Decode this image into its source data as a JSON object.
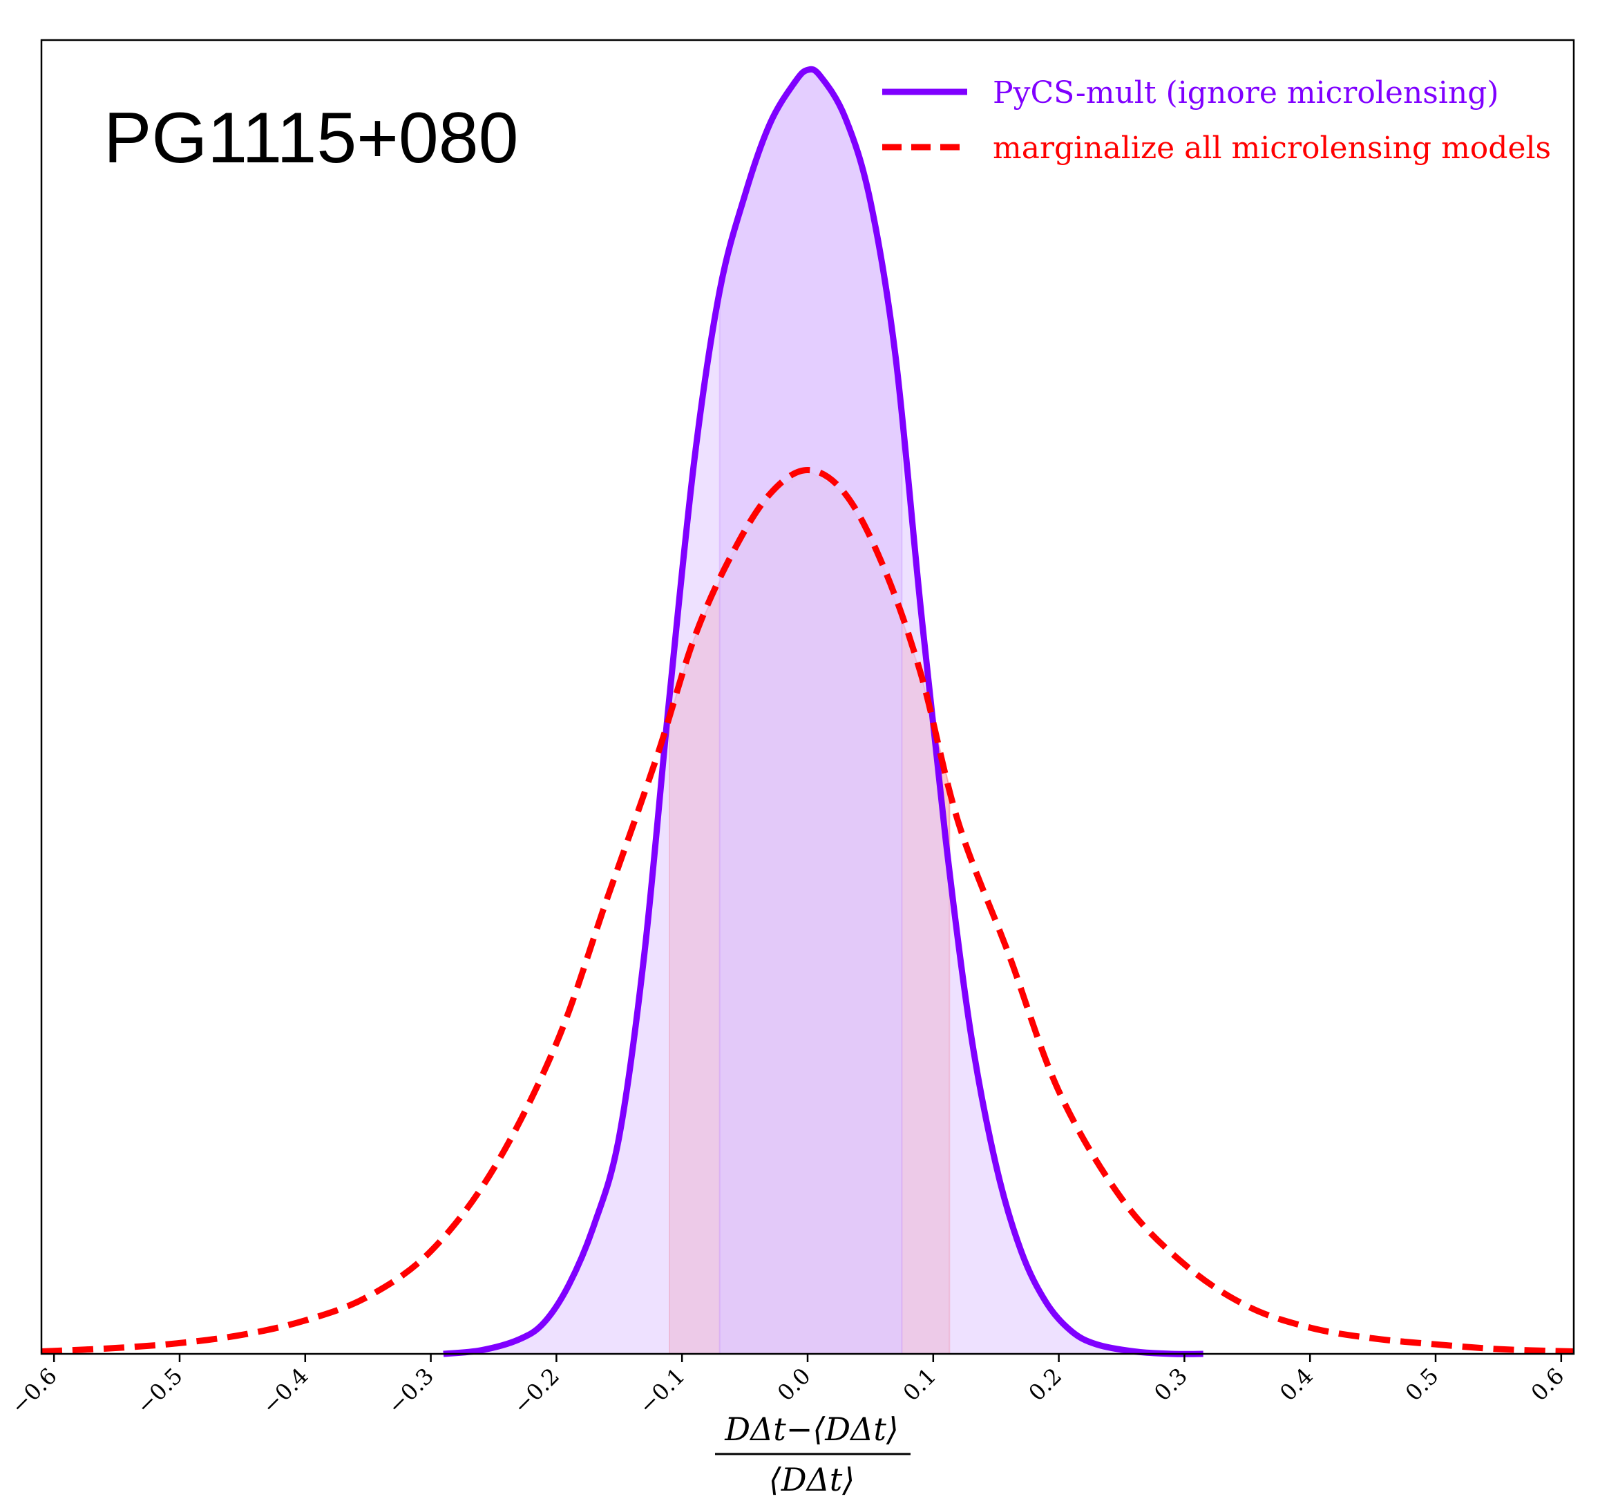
{
  "chart_data": {
    "type": "line",
    "title": "PG1115+080",
    "xlabel_numerator": "DΔt−⟨DΔt⟩",
    "xlabel_denominator": "⟨DΔt⟩",
    "xlim": [
      -0.61,
      0.61
    ],
    "ylim": [
      0,
      1.1
    ],
    "grid": false,
    "legend_position": "top-right",
    "xticks": [
      {
        "value": -0.6,
        "label": "−0.6"
      },
      {
        "value": -0.5,
        "label": "−0.5"
      },
      {
        "value": -0.4,
        "label": "−0.4"
      },
      {
        "value": -0.3,
        "label": "−0.3"
      },
      {
        "value": -0.2,
        "label": "−0.2"
      },
      {
        "value": -0.1,
        "label": "−0.1"
      },
      {
        "value": 0.0,
        "label": "0.0"
      },
      {
        "value": 0.1,
        "label": "0.1"
      },
      {
        "value": 0.2,
        "label": "0.2"
      },
      {
        "value": 0.3,
        "label": "0.3"
      },
      {
        "value": 0.4,
        "label": "0.4"
      },
      {
        "value": 0.5,
        "label": "0.5"
      },
      {
        "value": 0.6,
        "label": "0.6"
      }
    ],
    "series": [
      {
        "name": "PyCS-mult (ignore microlensing)",
        "color": "#7f00ff",
        "fill_color": "#e0c8ff",
        "line_style": "solid",
        "shaded_interval": [
          -0.07,
          0.075
        ],
        "x": [
          -0.29,
          -0.26,
          -0.23,
          -0.21,
          -0.19,
          -0.17,
          -0.15,
          -0.13,
          -0.11,
          -0.09,
          -0.07,
          -0.05,
          -0.03,
          -0.01,
          0.0,
          0.01,
          0.03,
          0.05,
          0.07,
          0.09,
          0.11,
          0.13,
          0.15,
          0.17,
          0.19,
          0.21,
          0.23,
          0.26,
          0.29,
          0.315
        ],
        "y": [
          0.0,
          0.003,
          0.012,
          0.026,
          0.058,
          0.108,
          0.182,
          0.335,
          0.55,
          0.75,
          0.89,
          0.97,
          1.03,
          1.065,
          1.075,
          1.07,
          1.035,
          0.965,
          0.835,
          0.625,
          0.43,
          0.268,
          0.158,
          0.086,
          0.043,
          0.019,
          0.008,
          0.002,
          0.0,
          0.0
        ]
      },
      {
        "name": "marginalize all microlensing models",
        "color": "#ff0000",
        "fill_color": "#fcc6c6",
        "line_style": "dashed",
        "shaded_interval": [
          -0.11,
          0.113
        ],
        "x": [
          -0.61,
          -0.55,
          -0.5,
          -0.45,
          -0.4,
          -0.35,
          -0.3,
          -0.25,
          -0.2,
          -0.16,
          -0.12,
          -0.09,
          -0.06,
          -0.03,
          0.0,
          0.03,
          0.06,
          0.09,
          0.12,
          0.16,
          0.2,
          0.25,
          0.3,
          0.35,
          0.4,
          0.45,
          0.5,
          0.55,
          0.61
        ],
        "y": [
          0.002,
          0.005,
          0.009,
          0.016,
          0.028,
          0.048,
          0.086,
          0.155,
          0.26,
          0.38,
          0.5,
          0.6,
          0.67,
          0.72,
          0.74,
          0.72,
          0.66,
          0.57,
          0.445,
          0.335,
          0.22,
          0.13,
          0.075,
          0.04,
          0.022,
          0.013,
          0.008,
          0.004,
          0.002
        ]
      }
    ]
  }
}
